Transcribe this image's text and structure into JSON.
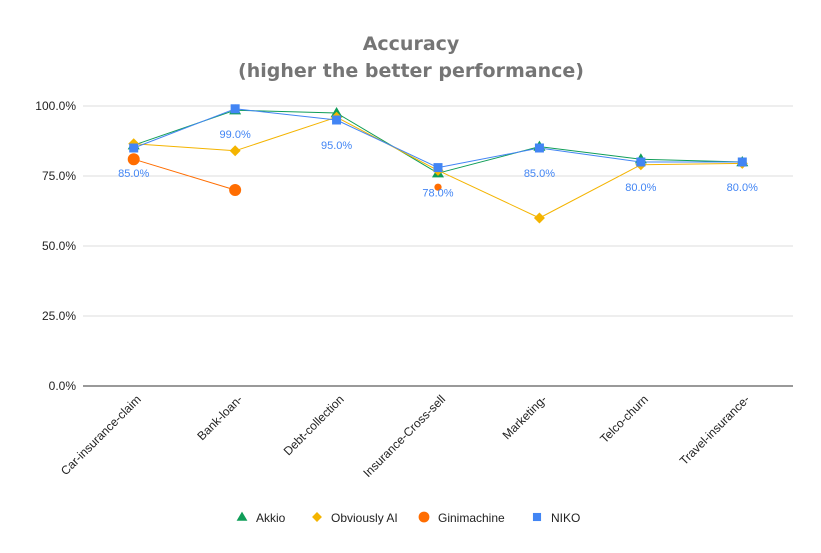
{
  "chart_data": {
    "type": "line",
    "title": [
      "Accuracy",
      "(higher the better performance)"
    ],
    "categories": [
      "Car-insurance-claim",
      "Bank-loan-",
      "Debt-collection",
      "Insurance-Cross-sell",
      "Marketing-",
      "Telco-churn",
      "Travel-insurance-"
    ],
    "ylim": [
      0,
      100
    ],
    "yticks": [
      0,
      25,
      50,
      75,
      100
    ],
    "ytick_labels": [
      "0.0%",
      "25.0%",
      "50.0%",
      "75.0%",
      "100.0%"
    ],
    "grid": true,
    "legend_position": "bottom",
    "series": [
      {
        "name": "Akkio",
        "marker": "triangle",
        "color": "#0f9d58",
        "values": [
          86,
          98.5,
          97.5,
          76,
          85.5,
          81,
          80
        ]
      },
      {
        "name": "Obviously AI",
        "marker": "diamond",
        "color": "#f4b400",
        "values": [
          86.5,
          84,
          96,
          77,
          60,
          79,
          79.5
        ]
      },
      {
        "name": "Ginimachine",
        "marker": "circle",
        "color": "#ff6d01",
        "values": [
          81,
          70,
          null,
          71,
          null,
          null,
          null
        ]
      },
      {
        "name": "NIKO",
        "marker": "square",
        "color": "#4285f4",
        "values": [
          85,
          99,
          95,
          78,
          85,
          80,
          80
        ]
      }
    ],
    "data_labels": {
      "series": "NIKO",
      "labels": [
        "85.0%",
        "99.0%",
        "95.0%",
        "78.0%",
        "85.0%",
        "80.0%",
        "80.0%"
      ]
    }
  }
}
